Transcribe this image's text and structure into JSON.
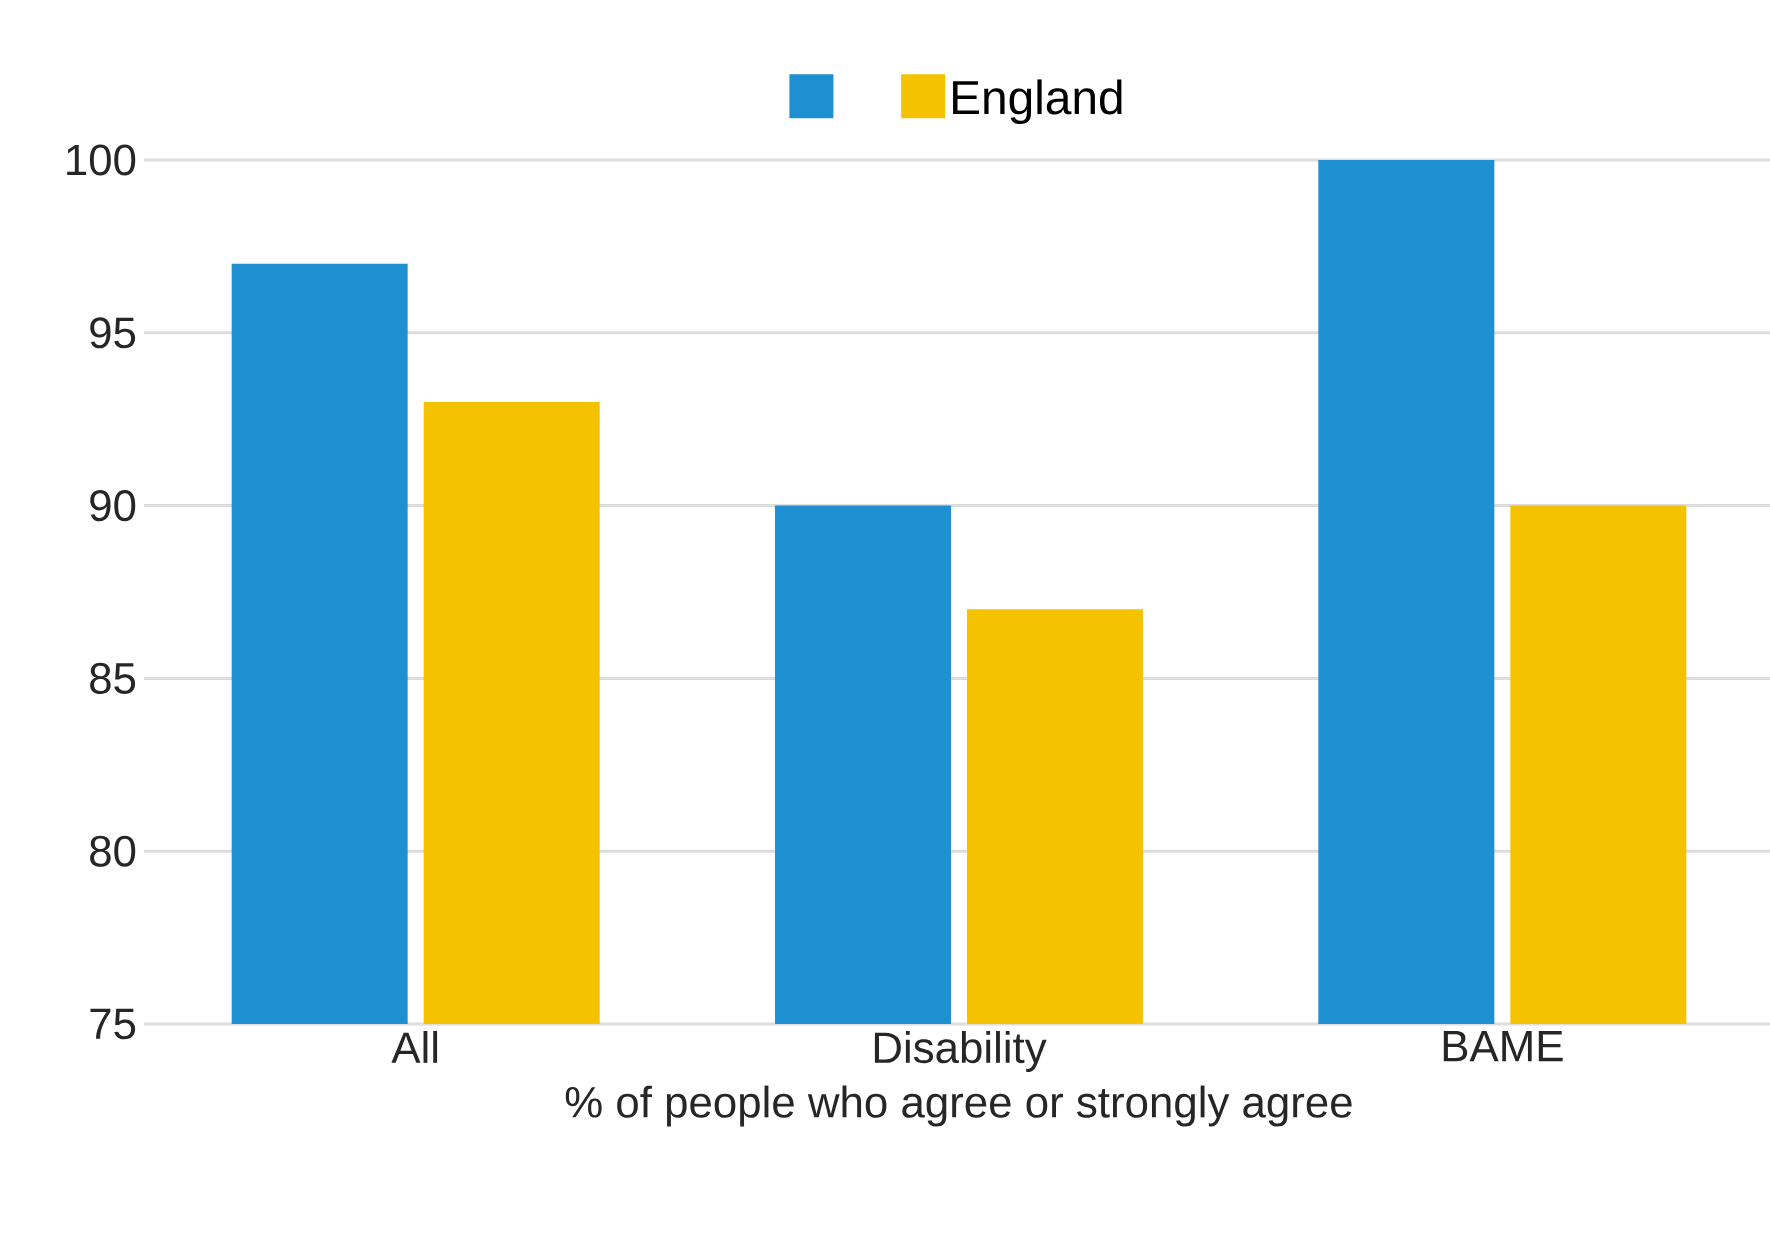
{
  "chart_data": {
    "type": "bar",
    "xlabel": "% of people who agree or strongly agree",
    "categories": [
      "All",
      "Disability",
      "BAME"
    ],
    "series": [
      {
        "color": "#1e90d2",
        "values": [
          97,
          90,
          100
        ]
      },
      {
        "name": "England",
        "color": "#f5c200",
        "values": [
          93,
          87,
          90
        ]
      }
    ],
    "ylim": [
      75,
      100
    ],
    "yticks": [
      75,
      80,
      85,
      90,
      95,
      100
    ],
    "grid": "y",
    "legend": "top"
  }
}
